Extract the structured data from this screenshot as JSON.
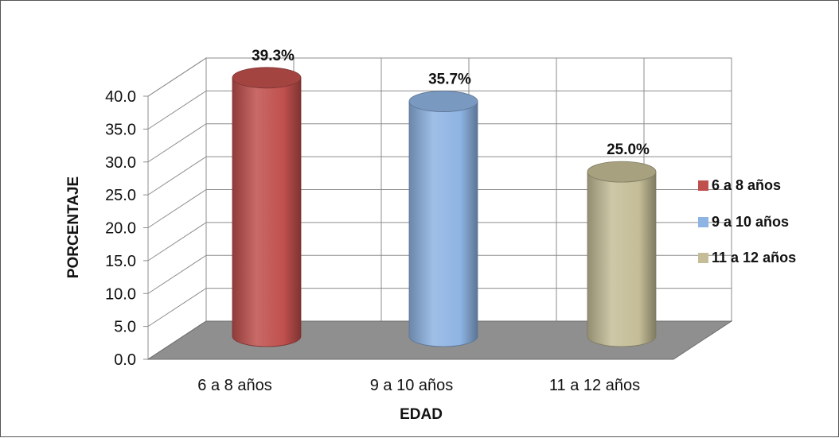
{
  "chart_data": {
    "type": "bar",
    "title": "",
    "xlabel": "EDAD",
    "ylabel": "PORCENTAJE",
    "categories": [
      "6 a 8 años",
      "9 a 10 años",
      "11 a 12 años"
    ],
    "values": [
      39.3,
      35.7,
      25.0
    ],
    "value_labels": [
      "39.3%",
      "35.7%",
      "25.0%"
    ],
    "ylim": [
      0,
      40
    ],
    "yticks": [
      "0.0",
      "5.0",
      "10.0",
      "15.0",
      "20.0",
      "25.0",
      "30.0",
      "35.0",
      "40.0"
    ],
    "colors": [
      "#c0504d",
      "#8eb4e3",
      "#c4bd97"
    ],
    "grid": true,
    "legend": {
      "position": "right",
      "entries": [
        "6 a 8 años",
        "9 a 10 años",
        "11 a 12 años"
      ]
    }
  }
}
